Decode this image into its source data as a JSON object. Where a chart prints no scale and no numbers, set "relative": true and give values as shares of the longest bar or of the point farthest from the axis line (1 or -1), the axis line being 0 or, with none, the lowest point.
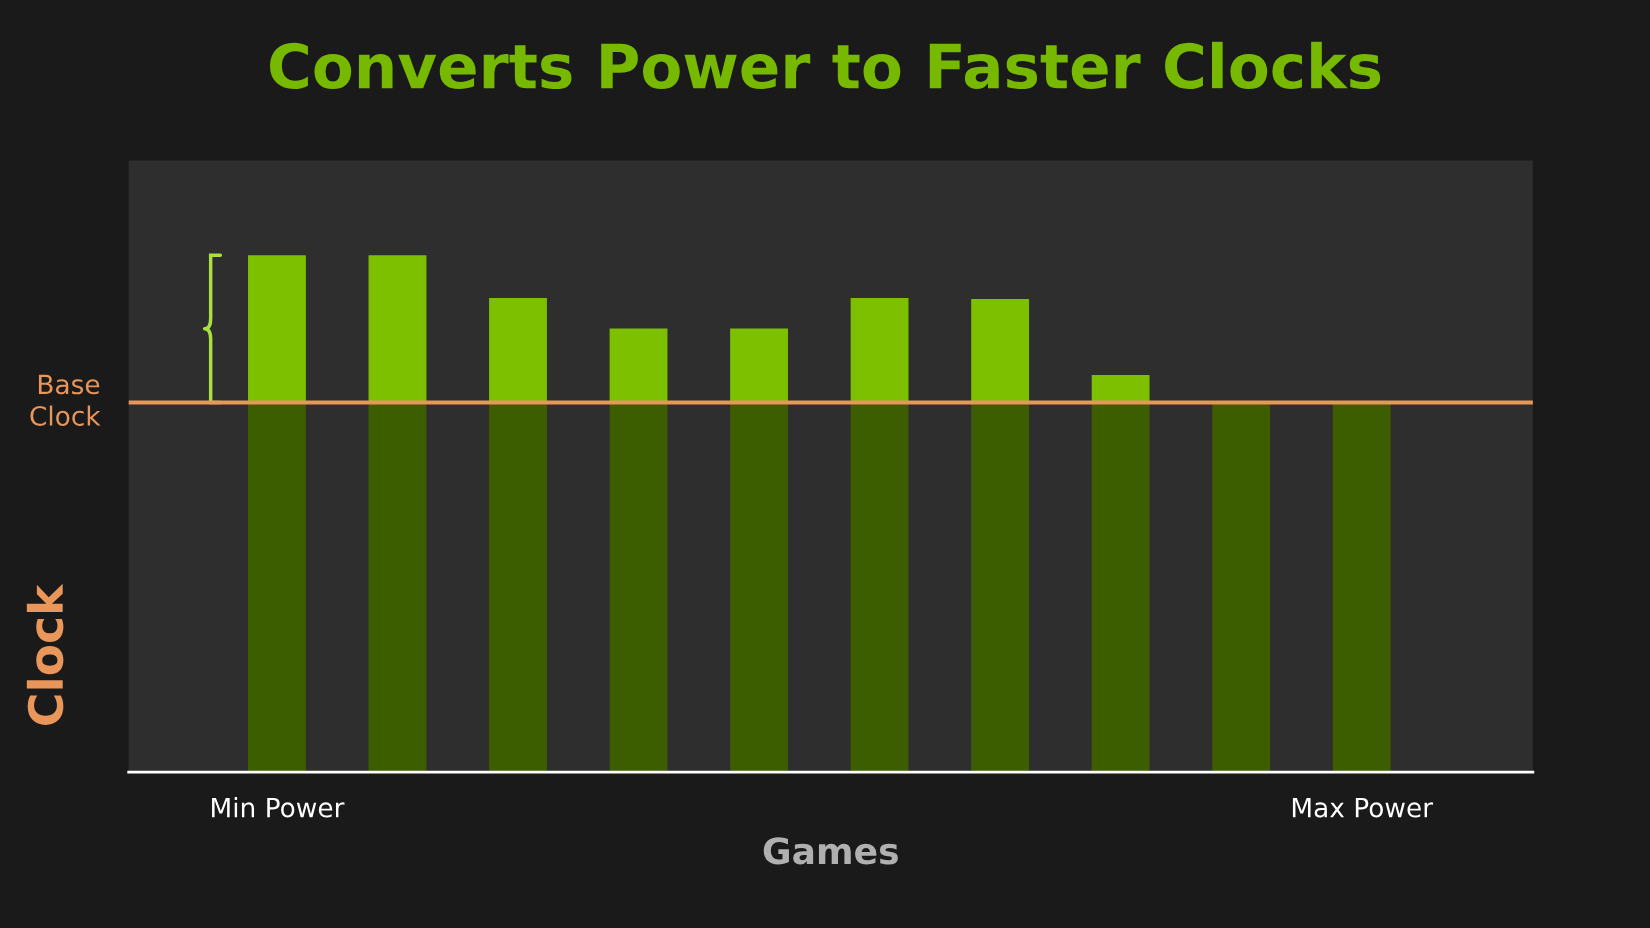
{
  "chart_data": {
    "type": "bar",
    "title": "Converts Power to Faster Clocks",
    "xlabel": "Games",
    "ylabel": "Clock",
    "relative": true,
    "stacked": true,
    "grid": false,
    "legend": false,
    "categories": [
      "Min Power",
      null,
      null,
      null,
      null,
      null,
      null,
      null,
      null,
      "Max Power"
    ],
    "series": [
      {
        "color": "#3d5e00",
        "values": [
          0.715,
          0.715,
          0.715,
          0.715,
          0.715,
          0.715,
          0.715,
          0.715,
          0.715,
          0.715
        ]
      },
      {
        "color": "#7dc000",
        "values": [
          0.285,
          0.285,
          0.202,
          0.143,
          0.143,
          0.202,
          0.2,
          0.053,
          0,
          0
        ]
      }
    ],
    "ref_lines": [
      {
        "axis": "y",
        "value": 0.715,
        "label": "Base\nClock",
        "color": "#e8965a",
        "line_style": "solid"
      }
    ]
  }
}
